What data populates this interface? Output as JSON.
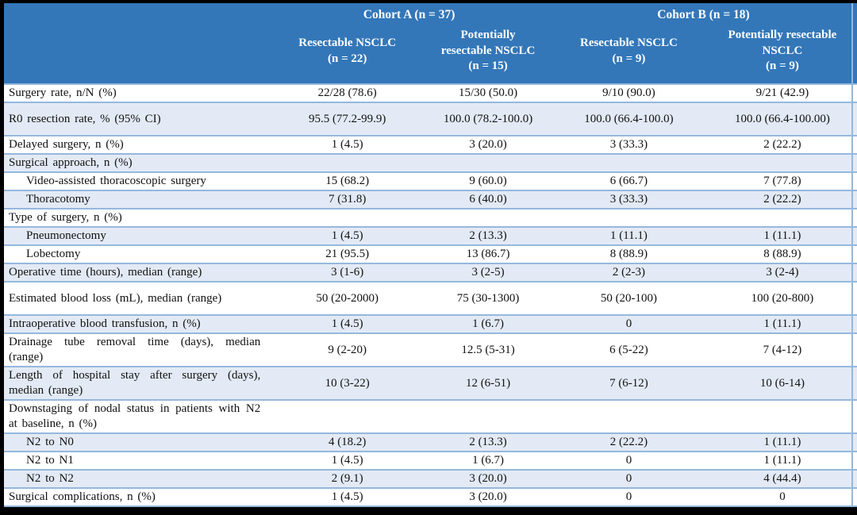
{
  "table": {
    "cohorts": [
      {
        "label": "Cohort A (n = 37)"
      },
      {
        "label": "Cohort B (n = 18)"
      }
    ],
    "columns": [
      {
        "label": "Resectable NSCLC\n(n = 22)"
      },
      {
        "label": "Potentially\nresectable NSCLC\n(n = 15)"
      },
      {
        "label": "Resectable NSCLC\n(n = 9)"
      },
      {
        "label": "Potentially resectable\nNSCLC\n(n = 9)"
      }
    ],
    "rows": [
      {
        "label": "Surgery rate, n/N (%)",
        "indent": false,
        "tall": false,
        "values": [
          "22/28 (78.6)",
          "15/30 (50.0)",
          "9/10 (90.0)",
          "9/21 (42.9)"
        ]
      },
      {
        "label": "R0 resection rate, % (95% CI)",
        "indent": false,
        "tall": true,
        "values": [
          "95.5 (77.2-99.9)",
          "100.0 (78.2-100.0)",
          "100.0 (66.4-100.0)",
          "100.0 (66.4-100.00)"
        ]
      },
      {
        "label": "Delayed surgery, n (%)",
        "indent": false,
        "tall": false,
        "values": [
          "1 (4.5)",
          "3 (20.0)",
          "3 (33.3)",
          "2 (22.2)"
        ]
      },
      {
        "label": "Surgical approach, n (%)",
        "indent": false,
        "tall": false,
        "values": [
          "",
          "",
          "",
          ""
        ]
      },
      {
        "label": "Video-assisted thoracoscopic surgery",
        "indent": true,
        "tall": false,
        "values": [
          "15 (68.2)",
          "9 (60.0)",
          "6 (66.7)",
          "7 (77.8)"
        ]
      },
      {
        "label": "Thoracotomy",
        "indent": true,
        "tall": false,
        "values": [
          "7 (31.8)",
          "6 (40.0)",
          "3 (33.3)",
          "2 (22.2)"
        ]
      },
      {
        "label": "Type of surgery, n (%)",
        "indent": false,
        "tall": false,
        "values": [
          "",
          "",
          "",
          ""
        ]
      },
      {
        "label": "Pneumonectomy",
        "indent": true,
        "tall": false,
        "values": [
          "1 (4.5)",
          "2 (13.3)",
          "1 (11.1)",
          "1 (11.1)"
        ]
      },
      {
        "label": "Lobectomy",
        "indent": true,
        "tall": false,
        "values": [
          "21 (95.5)",
          "13 (86.7)",
          "8 (88.9)",
          "8 (88.9)"
        ]
      },
      {
        "label": "Operative time (hours), median (range)",
        "indent": false,
        "tall": false,
        "values": [
          "3 (1-6)",
          "3 (2-5)",
          "2 (2-3)",
          "3 (2-4)"
        ]
      },
      {
        "label": "Estimated blood loss (mL), median (range)",
        "indent": false,
        "tall": true,
        "values": [
          "50 (20-2000)",
          "75 (30-1300)",
          "50 (20-100)",
          "100 (20-800)"
        ]
      },
      {
        "label": "Intraoperative blood transfusion, n (%)",
        "indent": false,
        "tall": false,
        "values": [
          "1 (4.5)",
          "1 (6.7)",
          "0",
          "1 (11.1)"
        ]
      },
      {
        "label": "Drainage tube removal time (days), median (range)",
        "indent": false,
        "tall": true,
        "values": [
          "9 (2-20)",
          "12.5 (5-31)",
          "6 (5-22)",
          "7 (4-12)"
        ]
      },
      {
        "label": "Length of hospital stay after surgery (days), median (range)",
        "indent": false,
        "tall": true,
        "values": [
          "10 (3-22)",
          "12 (6-51)",
          "7 (6-12)",
          "10 (6-14)"
        ]
      },
      {
        "label": "Downstaging of nodal status in patients with N2 at baseline, n (%)",
        "indent": false,
        "tall": true,
        "values": [
          "",
          "",
          "",
          ""
        ]
      },
      {
        "label": "N2 to N0",
        "indent": true,
        "tall": false,
        "values": [
          "4 (18.2)",
          "2 (13.3)",
          "2 (22.2)",
          "1 (11.1)"
        ]
      },
      {
        "label": "N2 to N1",
        "indent": true,
        "tall": false,
        "values": [
          "1 (4.5)",
          "1 (6.7)",
          "0",
          "1 (11.1)"
        ]
      },
      {
        "label": "N2 to N2",
        "indent": true,
        "tall": false,
        "values": [
          "2 (9.1)",
          "3 (20.0)",
          "0",
          "4 (44.4)"
        ]
      },
      {
        "label": "Surgical complications, n (%)",
        "indent": false,
        "tall": false,
        "values": [
          "1 (4.5)",
          "3 (20.0)",
          "0",
          "0"
        ]
      }
    ],
    "colors": {
      "header_bg": "#3377b9",
      "band_bg": "#e3eaf5",
      "border": "#95b8dd",
      "header_text": "#ffffff",
      "body_text": "#111111",
      "frame": "#000000"
    }
  }
}
